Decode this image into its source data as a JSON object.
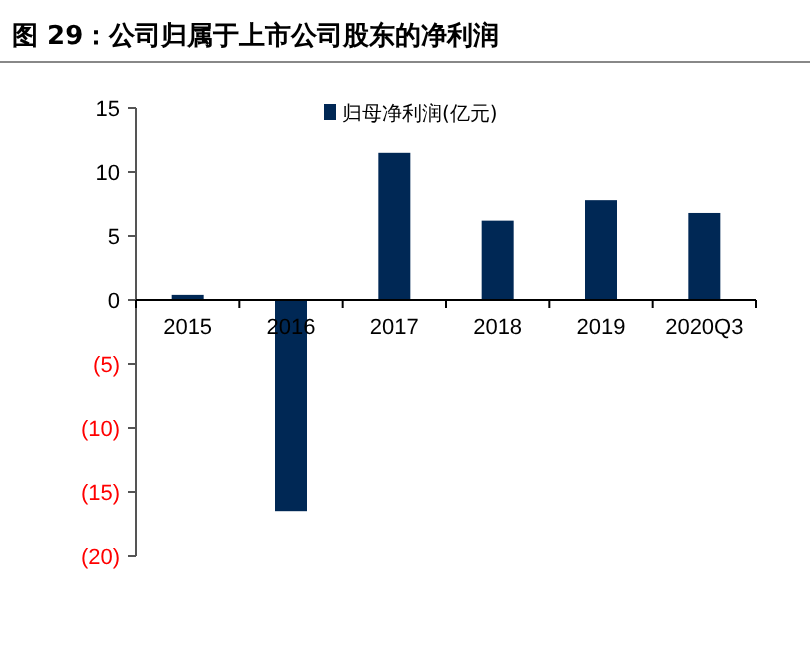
{
  "chart_data": {
    "type": "bar",
    "title": "图 29：公司归属于上市公司股东的净利润",
    "categories": [
      "2015",
      "2016",
      "2017",
      "2018",
      "2019",
      "2020Q3"
    ],
    "series": [
      {
        "name": "归母净利润(亿元)",
        "color": "#002855",
        "values": [
          0.4,
          -16.5,
          11.5,
          6.2,
          7.8,
          6.8
        ]
      }
    ],
    "ylim": [
      -20,
      15
    ],
    "yticks": [
      {
        "value": -20,
        "label": "(20)"
      },
      {
        "value": -15,
        "label": "(15)"
      },
      {
        "value": -10,
        "label": "(10)"
      },
      {
        "value": -5,
        "label": "(5)"
      },
      0,
      5,
      10,
      15
    ],
    "legend": "top",
    "grid": false
  }
}
